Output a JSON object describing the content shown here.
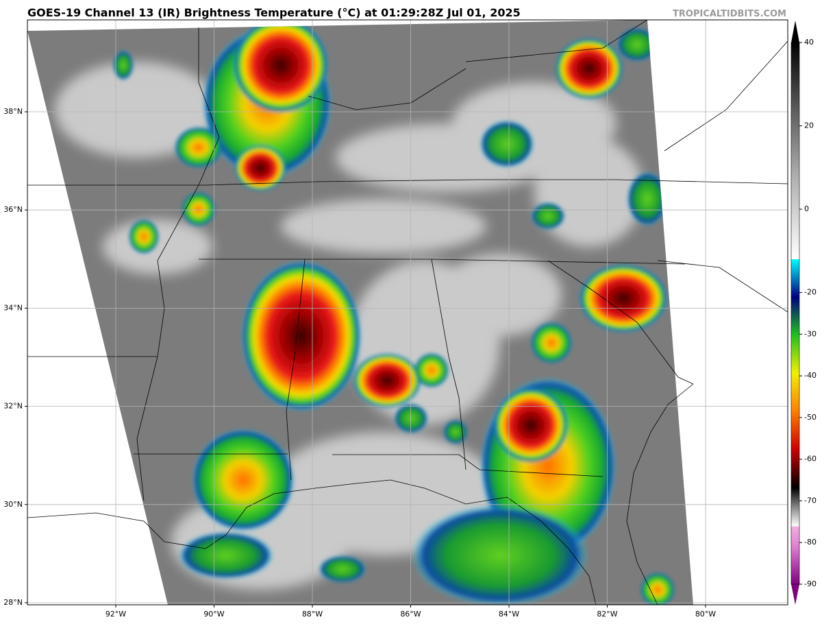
{
  "map": {
    "title": "GOES-19 Channel 13 (IR) Brightness Temperature (°C) at 01:29:28Z Jul 01, 2025",
    "watermark": "TROPICALTIDBITS.COM",
    "lat_labels": [
      {
        "value": 38,
        "label": "38°N"
      },
      {
        "value": 36,
        "label": "36°N"
      },
      {
        "value": 34,
        "label": "34°N"
      },
      {
        "value": 32,
        "label": "32°N"
      },
      {
        "value": 30,
        "label": "30°N"
      },
      {
        "value": 28,
        "label": "28°N"
      }
    ],
    "lon_labels": [
      {
        "value": -92,
        "label": "92°W"
      },
      {
        "value": -90,
        "label": "90°W"
      },
      {
        "value": -88,
        "label": "88°W"
      },
      {
        "value": -86,
        "label": "86°W"
      },
      {
        "value": -84,
        "label": "84°W"
      },
      {
        "value": -82,
        "label": "82°W"
      },
      {
        "value": -80,
        "label": "80°W"
      }
    ],
    "colorbar": {
      "ticks": [
        40,
        20,
        0,
        -20,
        -30,
        -40,
        -50,
        -60,
        -70,
        -80,
        -90
      ],
      "range": [
        -90,
        40
      ]
    }
  }
}
